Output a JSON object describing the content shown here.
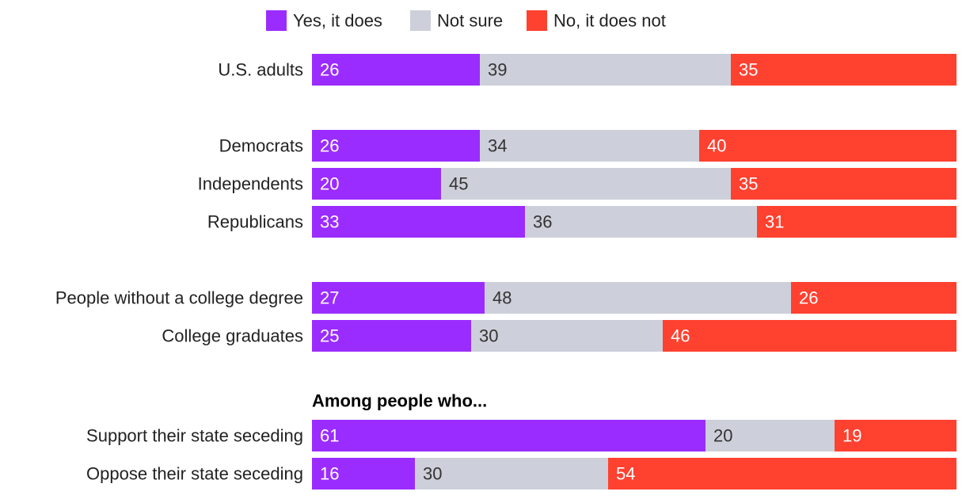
{
  "chart_data": {
    "type": "bar",
    "orientation": "horizontal",
    "stacked": "100%",
    "legend_position": "top",
    "series": [
      {
        "name": "Yes, it does",
        "color": "#9b2cff",
        "label_color": "#ffffff"
      },
      {
        "name": "Not sure",
        "color": "#cdd0da",
        "label_color": "#333333"
      },
      {
        "name": "No, it does not",
        "color": "#ff4130",
        "label_color": "#ffffff"
      }
    ],
    "groups": [
      {
        "heading": "",
        "rows": [
          {
            "label": "U.S. adults",
            "values": [
              26,
              39,
              35
            ]
          }
        ]
      },
      {
        "heading": "",
        "rows": [
          {
            "label": "Democrats",
            "values": [
              26,
              34,
              40
            ]
          },
          {
            "label": "Independents",
            "values": [
              20,
              45,
              35
            ]
          },
          {
            "label": "Republicans",
            "values": [
              33,
              36,
              31
            ]
          }
        ]
      },
      {
        "heading": "",
        "rows": [
          {
            "label": "People without a college degree",
            "values": [
              27,
              48,
              26
            ]
          },
          {
            "label": "College graduates",
            "values": [
              25,
              30,
              46
            ]
          }
        ]
      },
      {
        "heading": "Among people who...",
        "rows": [
          {
            "label": "Support their state seceding",
            "values": [
              61,
              20,
              19
            ]
          },
          {
            "label": "Oppose their state seceding",
            "values": [
              16,
              30,
              54
            ]
          }
        ]
      }
    ]
  }
}
